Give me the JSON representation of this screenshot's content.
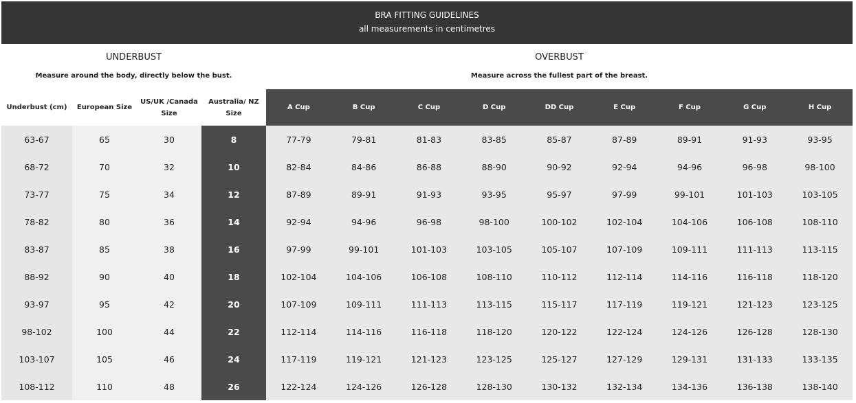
{
  "banner": {
    "title": "BRA FITTING GUIDELINES",
    "subtitle": "all measurements in centimetres"
  },
  "underbust": {
    "heading": "UNDERBUST",
    "description": "Measure around the body, directly below the bust."
  },
  "overbust": {
    "heading": "OVERBUST",
    "description": "Measure across the fullest part of the breast."
  },
  "columns": [
    "Underbust (cm)",
    "European Size",
    "US/UK /Canada Size",
    "Australia/ NZ Size",
    "A Cup",
    "B Cup",
    "C Cup",
    "D Cup",
    "DD Cup",
    "E Cup",
    "F Cup",
    "G Cup",
    "H Cup"
  ],
  "rows": [
    [
      "63-67",
      "65",
      "30",
      "8",
      "77-79",
      "79-81",
      "81-83",
      "83-85",
      "85-87",
      "87-89",
      "89-91",
      "91-93",
      "93-95"
    ],
    [
      "68-72",
      "70",
      "32",
      "10",
      "82-84",
      "84-86",
      "86-88",
      "88-90",
      "90-92",
      "92-94",
      "94-96",
      "96-98",
      "98-100"
    ],
    [
      "73-77",
      "75",
      "34",
      "12",
      "87-89",
      "89-91",
      "91-93",
      "93-95",
      "95-97",
      "97-99",
      "99-101",
      "101-103",
      "103-105"
    ],
    [
      "78-82",
      "80",
      "36",
      "14",
      "92-94",
      "94-96",
      "96-98",
      "98-100",
      "100-102",
      "102-104",
      "104-106",
      "106-108",
      "108-110"
    ],
    [
      "83-87",
      "85",
      "38",
      "16",
      "97-99",
      "99-101",
      "101-103",
      "103-105",
      "105-107",
      "107-109",
      "109-111",
      "111-113",
      "113-115"
    ],
    [
      "88-92",
      "90",
      "40",
      "18",
      "102-104",
      "104-106",
      "106-108",
      "108-110",
      "110-112",
      "112-114",
      "114-116",
      "116-118",
      "118-120"
    ],
    [
      "93-97",
      "95",
      "42",
      "20",
      "107-109",
      "109-111",
      "111-113",
      "113-115",
      "115-117",
      "117-119",
      "119-121",
      "121-123",
      "123-125"
    ],
    [
      "98-102",
      "100",
      "44",
      "22",
      "112-114",
      "114-116",
      "116-118",
      "118-120",
      "120-122",
      "122-124",
      "124-126",
      "126-128",
      "128-130"
    ],
    [
      "103-107",
      "105",
      "46",
      "24",
      "117-119",
      "119-121",
      "121-123",
      "123-125",
      "125-127",
      "127-129",
      "129-131",
      "131-133",
      "133-135"
    ],
    [
      "108-112",
      "110",
      "48",
      "26",
      "122-124",
      "124-126",
      "126-128",
      "128-130",
      "130-132",
      "132-134",
      "134-136",
      "136-138",
      "138-140"
    ]
  ],
  "colors": {
    "banner": "#353535",
    "dark_column": "#4a4a4a",
    "light_cell": "#e8e8e8"
  }
}
